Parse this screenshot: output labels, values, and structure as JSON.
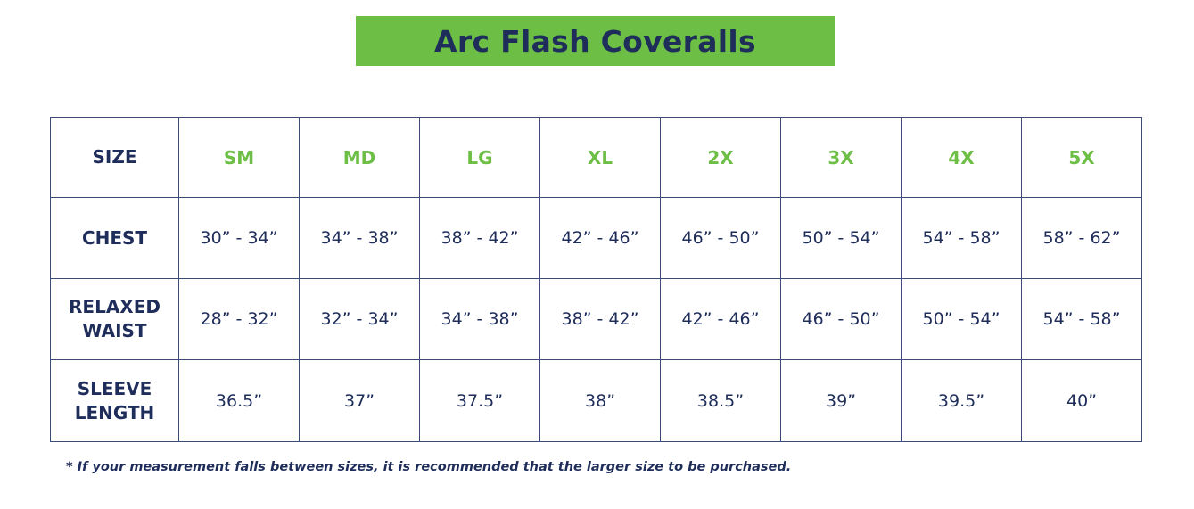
{
  "title": "Arc Flash Coveralls",
  "colors": {
    "accent_green": "#6cbf44",
    "navy": "#1f2d5a"
  },
  "table": {
    "header_label": "SIZE",
    "sizes": [
      "SM",
      "MD",
      "LG",
      "XL",
      "2X",
      "3X",
      "4X",
      "5X"
    ],
    "rows": [
      {
        "label_lines": [
          "CHEST"
        ],
        "values": [
          "30” - 34”",
          "34” - 38”",
          "38” - 42”",
          "42” - 46”",
          "46” - 50”",
          "50” - 54”",
          "54” - 58”",
          "58” - 62”"
        ]
      },
      {
        "label_lines": [
          "RELAXED",
          "WAIST"
        ],
        "values": [
          "28” - 32”",
          "32” - 34”",
          "34” - 38”",
          "38” - 42”",
          "42” - 46”",
          "46” - 50”",
          "50” - 54”",
          "54” - 58”"
        ]
      },
      {
        "label_lines": [
          "SLEEVE",
          "LENGTH"
        ],
        "values": [
          "36.5”",
          "37”",
          "37.5”",
          "38”",
          "38.5”",
          "39”",
          "39.5”",
          "40”"
        ]
      }
    ]
  },
  "footnote": "* If your measurement falls between sizes, it is recommended that the larger size to be purchased."
}
